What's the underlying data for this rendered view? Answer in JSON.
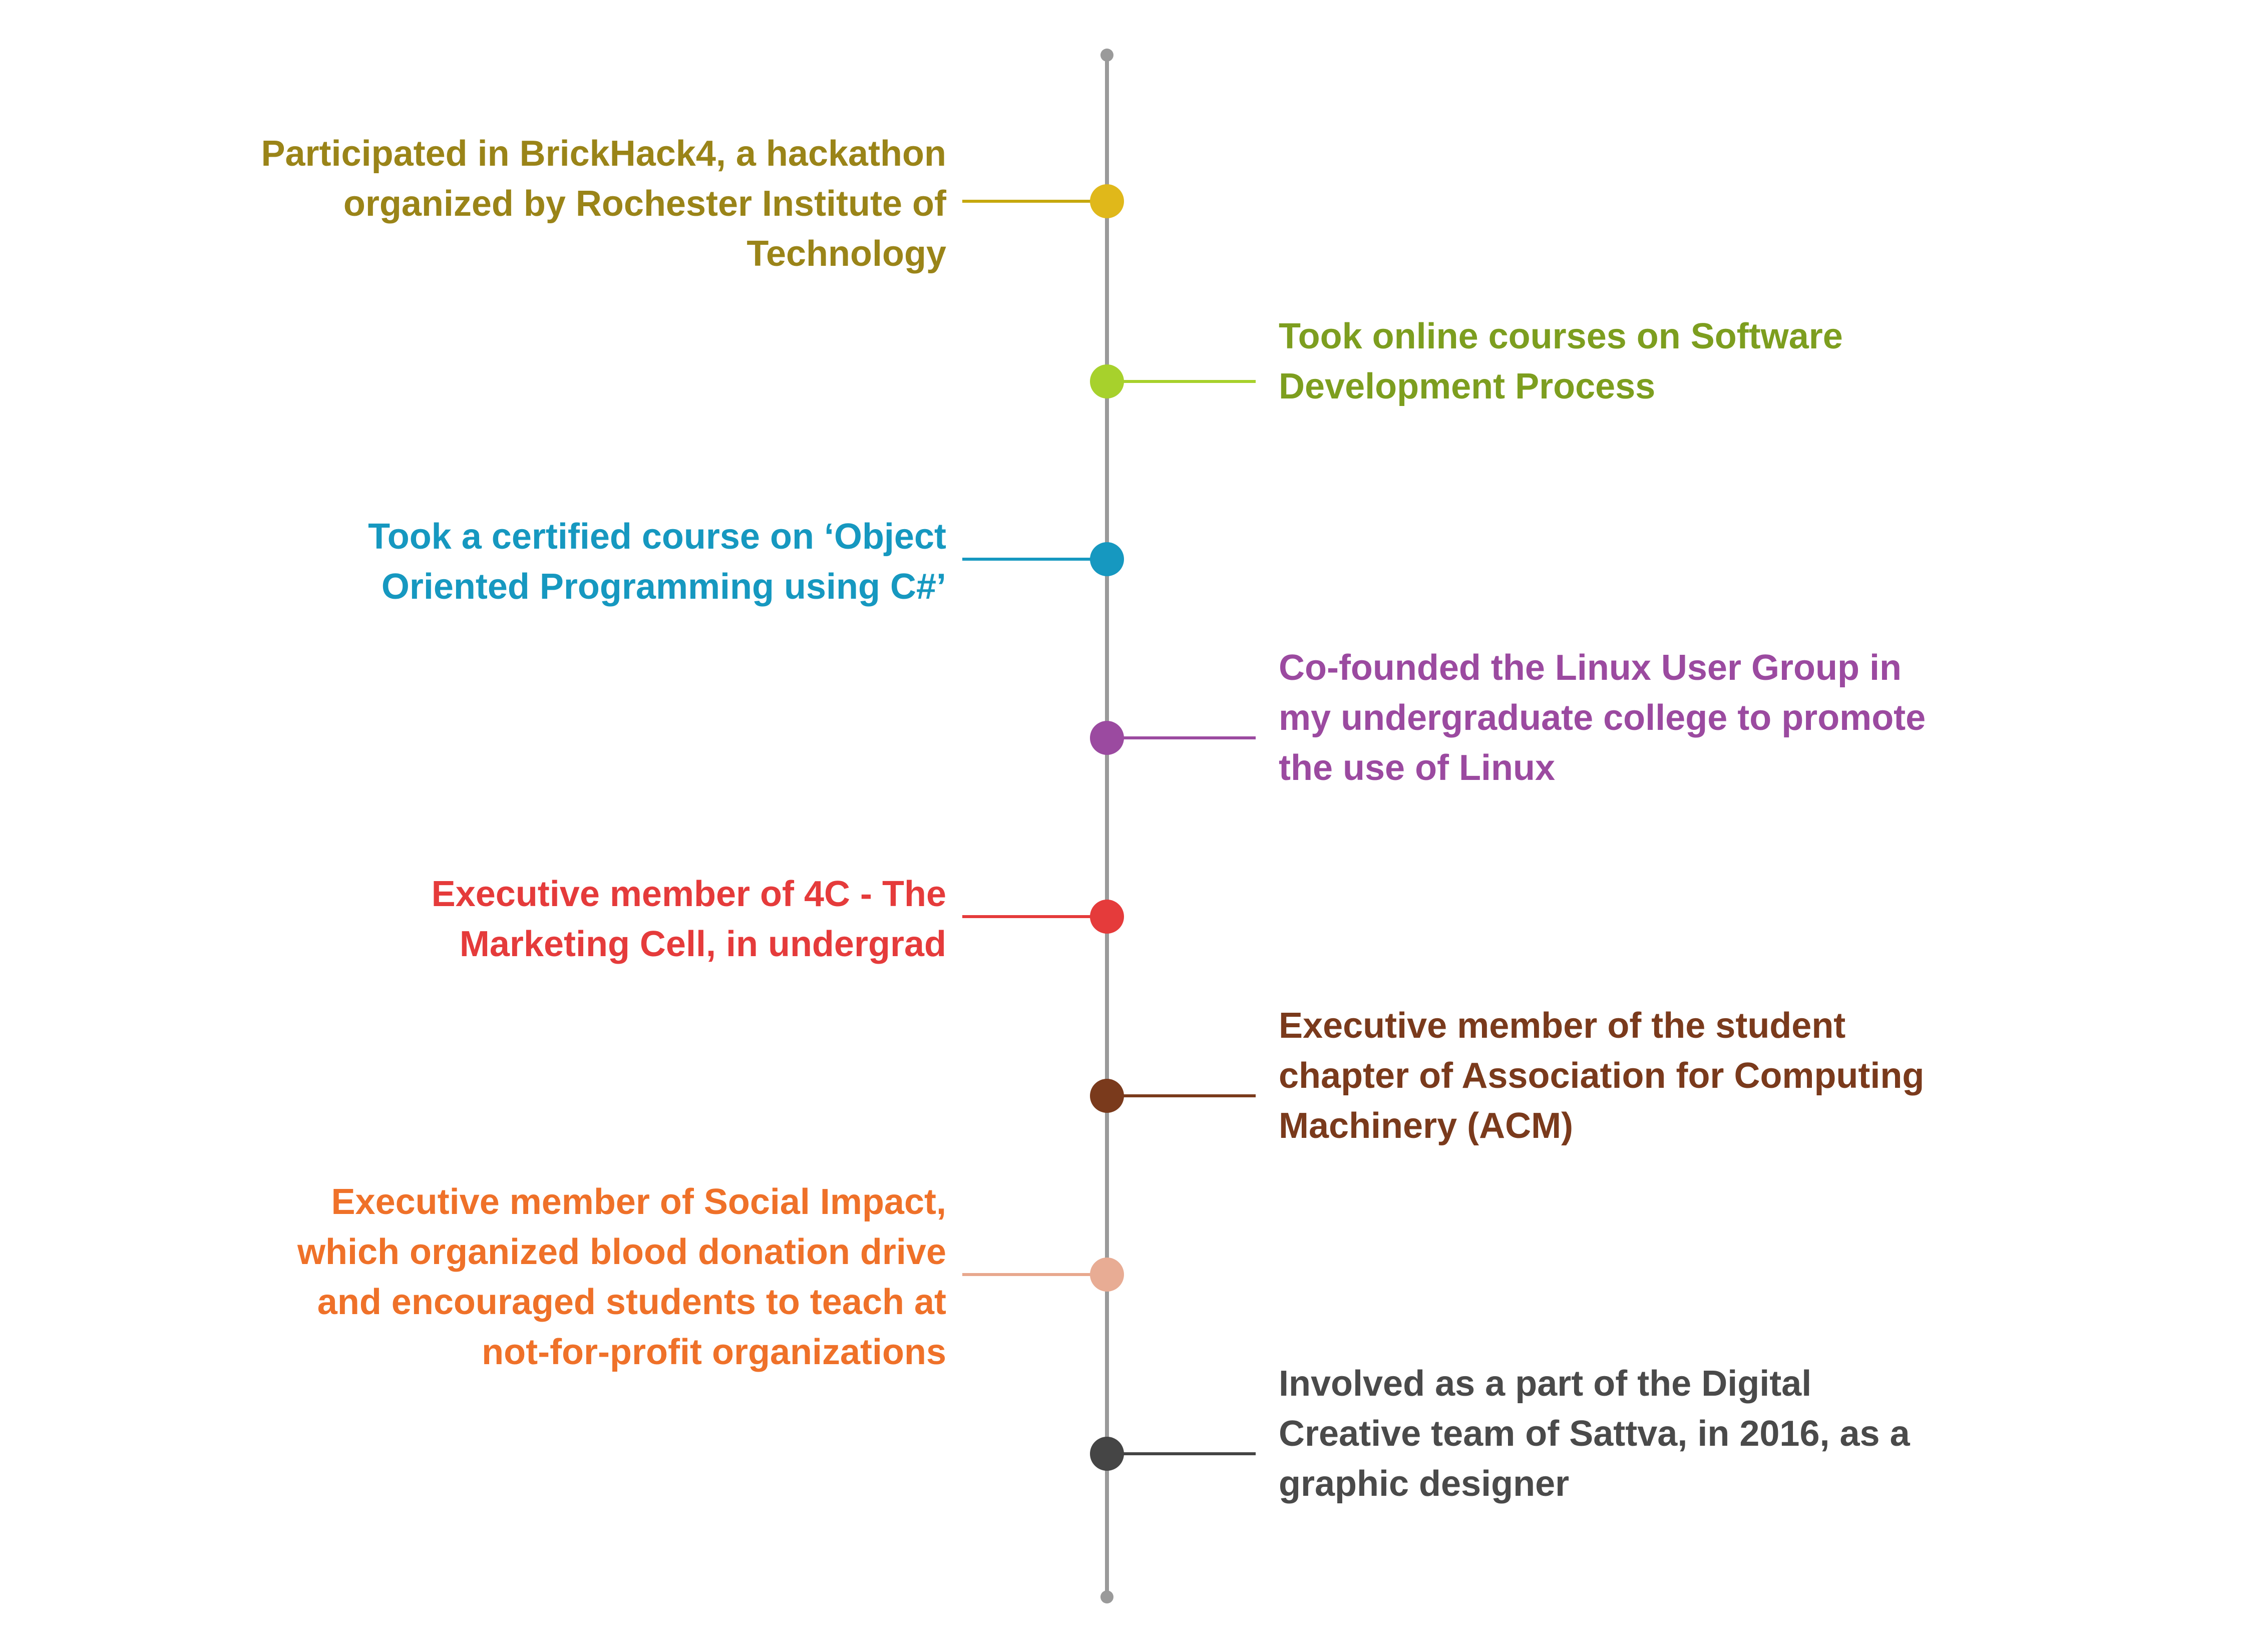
{
  "timeline": {
    "axis_color": "#9a9a9a",
    "events": [
      {
        "side": "left",
        "color": "#c6a80e",
        "dot_color": "#e0b81a",
        "text_color": "#9a8418",
        "text": "Participated in BrickHack4, a hackathon\norganized by Rochester Institute of\nTechnology"
      },
      {
        "side": "right",
        "color": "#a7d12c",
        "dot_color": "#a7d12c",
        "text_color": "#7d9e1f",
        "text": "Took online courses on Software\nDevelopment Process"
      },
      {
        "side": "left",
        "color": "#1698c0",
        "dot_color": "#1698c0",
        "text_color": "#1698c0",
        "text": "Took a certified course on ‘Object\nOriented Programming using C#’"
      },
      {
        "side": "right",
        "color": "#9b4aa0",
        "dot_color": "#9b4aa0",
        "text_color": "#9b4aa0",
        "text": "Co-founded the Linux User Group in\nmy undergraduate college to promote\nthe use of Linux"
      },
      {
        "side": "left",
        "color": "#e53b3b",
        "dot_color": "#e53b3b",
        "text_color": "#e53b3b",
        "text": "Executive member of 4C - The\nMarketing Cell, in undergrad"
      },
      {
        "side": "right",
        "color": "#7a3a1c",
        "dot_color": "#7a3a1c",
        "text_color": "#7a3a1c",
        "text": "Executive member of the student\nchapter of Association for Computing\nMachinery (ACM)"
      },
      {
        "side": "left",
        "color": "#e8a88e",
        "dot_color": "#e8ac94",
        "text_color": "#ef7129",
        "text": "Executive member of Social Impact,\nwhich organized blood donation drive\nand encouraged students to teach at\nnot-for-profit organizations"
      },
      {
        "side": "right",
        "color": "#444444",
        "dot_color": "#454545",
        "text_color": "#4a4a4a",
        "text": "Involved as a part of the Digital\nCreative team of Sattva, in 2016, as a\ngraphic designer"
      }
    ]
  }
}
